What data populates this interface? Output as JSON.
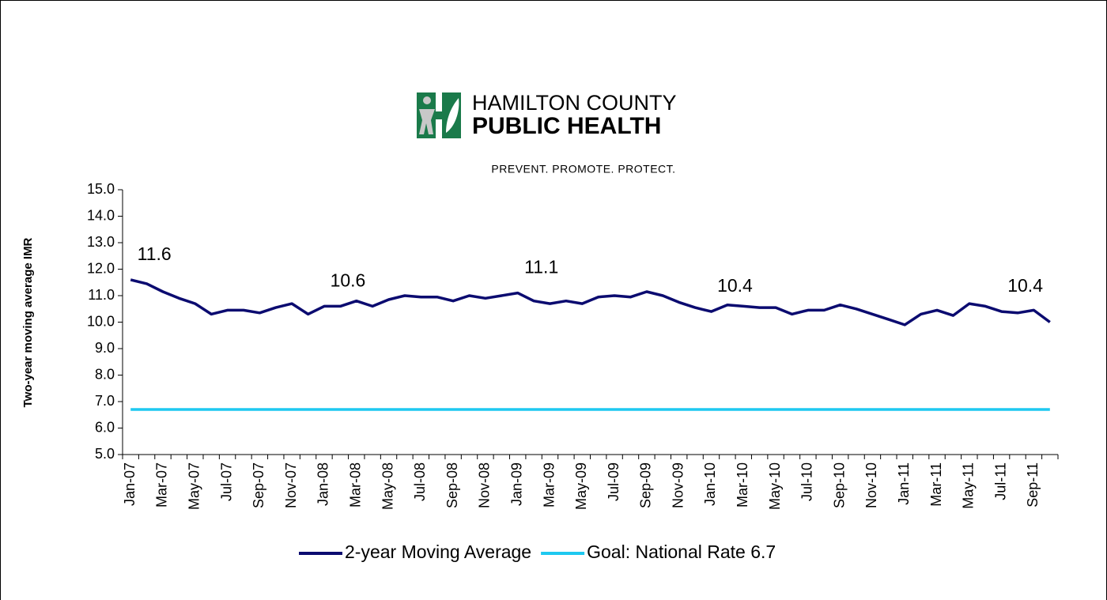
{
  "logo": {
    "line1": "HAMILTON COUNTY",
    "line2": "PUBLIC HEALTH",
    "tagline": "PREVENT. PROMOTE. PROTECT."
  },
  "chart_data": {
    "type": "line",
    "y_label": "Two-year moving average IMR",
    "categories": [
      "Jan-07",
      null,
      "Mar-07",
      null,
      "May-07",
      null,
      "Jul-07",
      null,
      "Sep-07",
      null,
      "Nov-07",
      null,
      "Jan-08",
      null,
      "Mar-08",
      null,
      "May-08",
      null,
      "Jul-08",
      null,
      "Sep-08",
      null,
      "Nov-08",
      null,
      "Jan-09",
      null,
      "Mar-09",
      null,
      "May-09",
      null,
      "Jul-09",
      null,
      "Sep-09",
      null,
      "Nov-09",
      null,
      "Jan-10",
      null,
      "Mar-10",
      null,
      "May-10",
      null,
      "Jul-10",
      null,
      "Sep-10",
      null,
      "Nov-10",
      null,
      "Jan-11",
      null,
      "Mar-11",
      null,
      "May-11",
      null,
      "Jul-11",
      null,
      "Sep-11",
      null
    ],
    "series": [
      {
        "name": "2-year Moving Average",
        "color": "#0b0b70",
        "values": [
          11.6,
          11.45,
          11.15,
          10.9,
          10.7,
          10.3,
          10.45,
          10.45,
          10.35,
          10.55,
          10.7,
          10.3,
          10.6,
          10.6,
          10.8,
          10.6,
          10.85,
          11.0,
          10.95,
          10.95,
          10.8,
          11.0,
          10.9,
          11.0,
          11.1,
          10.8,
          10.7,
          10.8,
          10.7,
          10.95,
          11.0,
          10.95,
          11.15,
          11.0,
          10.75,
          10.55,
          10.4,
          10.65,
          10.6,
          10.55,
          10.55,
          10.3,
          10.45,
          10.45,
          10.65,
          10.5,
          10.3,
          10.1,
          9.9,
          10.3,
          10.45,
          10.25,
          10.7,
          10.6,
          10.4,
          10.35,
          10.45,
          10.0
        ],
        "value_labels": [
          "11.6",
          null,
          null,
          null,
          null,
          null,
          null,
          null,
          null,
          null,
          null,
          null,
          "10.6",
          null,
          null,
          null,
          null,
          null,
          null,
          null,
          null,
          null,
          null,
          null,
          "11.1",
          null,
          null,
          null,
          null,
          null,
          null,
          null,
          null,
          null,
          null,
          null,
          "10.4",
          null,
          null,
          null,
          null,
          null,
          null,
          null,
          null,
          null,
          null,
          null,
          null,
          null,
          null,
          null,
          null,
          null,
          "10.4",
          null,
          null,
          null
        ]
      },
      {
        "name": "Goal: National Rate 6.7",
        "color": "#1ec8f0",
        "values": [
          6.7,
          6.7,
          6.7,
          6.7,
          6.7,
          6.7,
          6.7,
          6.7,
          6.7,
          6.7,
          6.7,
          6.7,
          6.7,
          6.7,
          6.7,
          6.7,
          6.7,
          6.7,
          6.7,
          6.7,
          6.7,
          6.7,
          6.7,
          6.7,
          6.7,
          6.7,
          6.7,
          6.7,
          6.7,
          6.7,
          6.7,
          6.7,
          6.7,
          6.7,
          6.7,
          6.7,
          6.7,
          6.7,
          6.7,
          6.7,
          6.7,
          6.7,
          6.7,
          6.7,
          6.7,
          6.7,
          6.7,
          6.7,
          6.7,
          6.7,
          6.7,
          6.7,
          6.7,
          6.7,
          6.7,
          6.7,
          6.7,
          6.7
        ]
      }
    ],
    "ylim": [
      5,
      15
    ],
    "yticks": [
      {
        "value": 5,
        "label": "5.0"
      },
      {
        "value": 6,
        "label": "6.0"
      },
      {
        "value": 7,
        "label": "7.0"
      },
      {
        "value": 8,
        "label": "8.0"
      },
      {
        "value": 9,
        "label": "9.0"
      },
      {
        "value": 10,
        "label": "10.0"
      },
      {
        "value": 11,
        "label": "11.0"
      },
      {
        "value": 12,
        "label": "12.0"
      },
      {
        "value": 13,
        "label": "13.0"
      },
      {
        "value": 14,
        "label": "14.0"
      },
      {
        "value": 15,
        "label": "15.0"
      }
    ],
    "grid": false,
    "legend": "bottom"
  }
}
